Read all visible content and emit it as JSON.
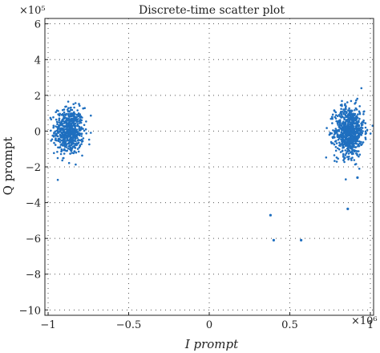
{
  "chart_data": {
    "type": "scatter",
    "title": "Discrete-time scatter plot",
    "xlabel": "I prompt",
    "ylabel": "Q prompt",
    "x_multiplier": "×10⁶",
    "y_multiplier": "×10⁵",
    "xlim": [
      -1.02,
      1.02
    ],
    "ylim": [
      -10.3,
      6.3
    ],
    "xticks": [
      -1,
      -0.5,
      0,
      0.5,
      1
    ],
    "xtick_labels": [
      "−1",
      "−0.5",
      "0",
      "0.5",
      "1"
    ],
    "yticks": [
      -10,
      -8,
      -6,
      -4,
      -2,
      0,
      2,
      4,
      6
    ],
    "ytick_labels": [
      "−10",
      "−8",
      "−6",
      "−4",
      "−2",
      "0",
      "2",
      "4",
      "6"
    ],
    "grid": true,
    "marker_color": "#1f6fbf",
    "series": [
      {
        "clusters": [
          {
            "center_x": -0.87,
            "center_y": 0.0,
            "spread_x": 0.045,
            "spread_y": 0.65,
            "approx_points": 600
          },
          {
            "center_x": 0.87,
            "center_y": 0.0,
            "spread_x": 0.045,
            "spread_y": 0.7,
            "approx_points": 750
          }
        ],
        "outliers": [
          {
            "x": 0.38,
            "y": -4.7
          },
          {
            "x": 0.4,
            "y": -6.1
          },
          {
            "x": 0.57,
            "y": -6.1
          },
          {
            "x": 0.86,
            "y": -4.35
          },
          {
            "x": 0.92,
            "y": -2.6
          }
        ]
      }
    ]
  }
}
